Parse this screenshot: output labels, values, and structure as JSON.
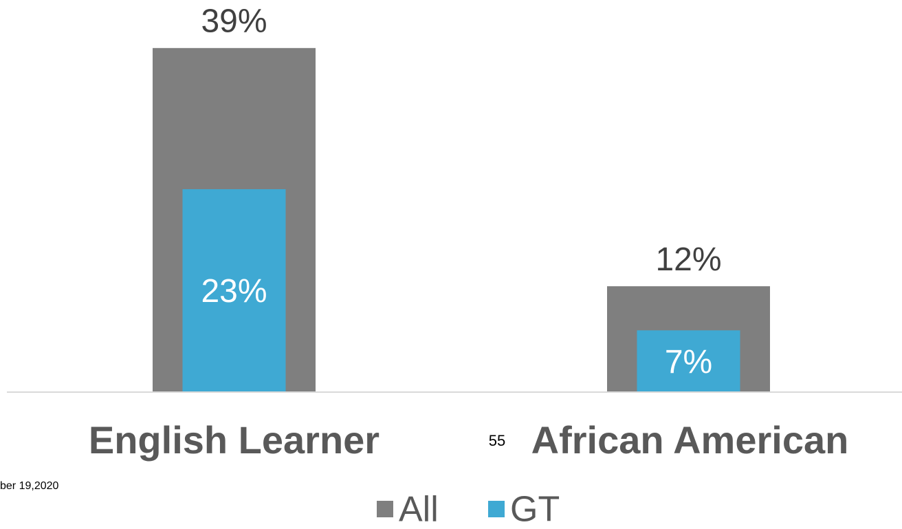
{
  "chart_data": {
    "type": "bar",
    "overlap": true,
    "categories": [
      "English Learner",
      "African American"
    ],
    "series": [
      {
        "name": "All",
        "color": "#7f7f7f",
        "values": [
          39,
          12
        ],
        "value_labels": [
          "39%",
          "12%"
        ]
      },
      {
        "name": "GT",
        "color": "#3fa9d3",
        "values": [
          23,
          7
        ],
        "value_labels": [
          "23%",
          "7%"
        ]
      }
    ],
    "ylim": [
      0,
      40
    ],
    "legend": "bottom",
    "annotations": [
      "55",
      "ber 19,2020"
    ]
  }
}
